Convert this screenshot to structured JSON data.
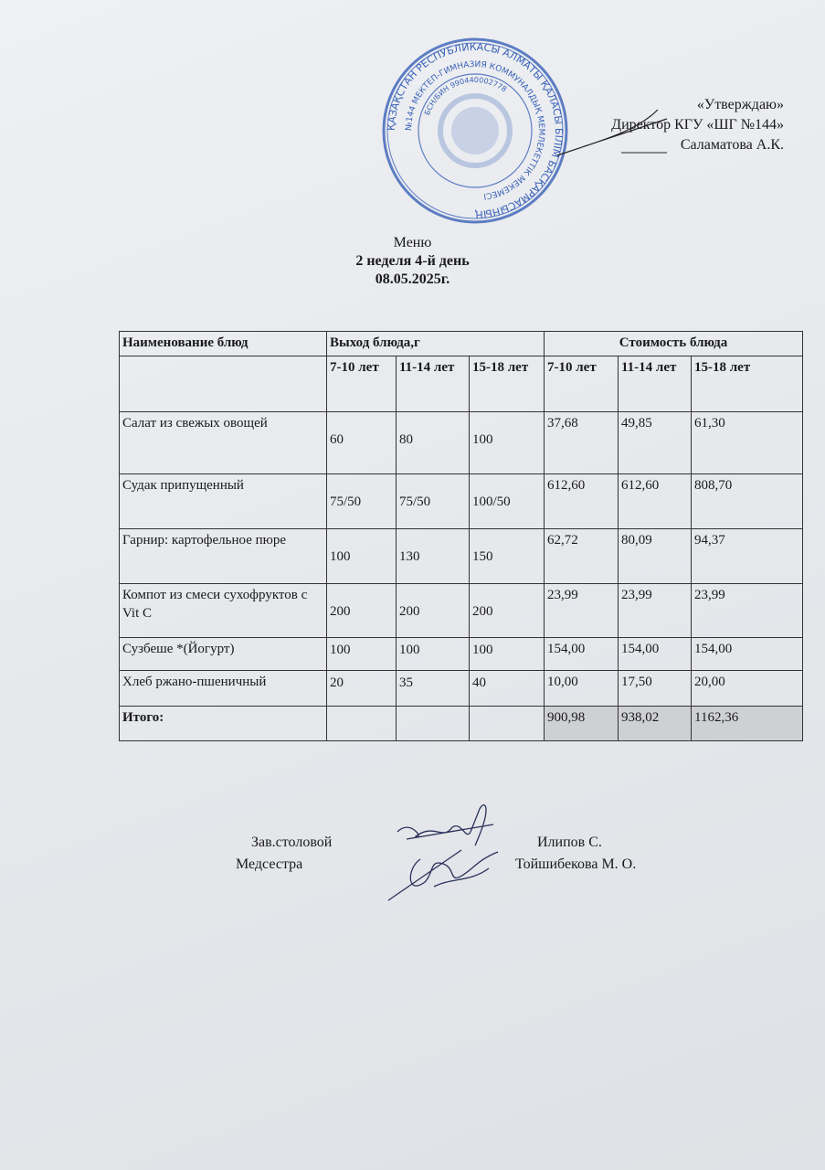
{
  "stamp": {
    "text_outer": "ҚАЗАҚСТАН РЕСПУБЛИКАСЫ АЛМАТЫ ҚАЛАСЫ БІЛІМ БАСҚАРМАСЫНЫҢ",
    "text_inner": "№144 МЕКТЕП-ГИМНАЗИЯ КОММУНАЛДЫҚ МЕМЛЕКЕТТІК МЕКЕМЕСІ",
    "bin": "БСН/БИН 990440002778",
    "color": "#3a62b8"
  },
  "approval": {
    "line1": "«Утверждаю»",
    "line2": "Директор КГУ «ШГ №144»",
    "line3": "Саламатова А.К."
  },
  "header": {
    "title": "Меню",
    "subtitle": "2 неделя 4-й день",
    "date": "08.05.2025г."
  },
  "table": {
    "col_name": "Наименование блюд",
    "col_yield": "Выход блюда,г",
    "col_cost": "Стоимость блюда",
    "age_groups": [
      "7-10 лет",
      "11-14 лет",
      "15-18 лет",
      "7-10 лет",
      "11-14 лет",
      "15-18 лет"
    ],
    "rows": [
      {
        "name": "Салат из свежых овощей",
        "yield": [
          "60",
          "80",
          "100"
        ],
        "cost": [
          "37,68",
          "49,85",
          "61,30"
        ]
      },
      {
        "name": "Судак припущенный",
        "yield": [
          "75/50",
          "75/50",
          "100/50"
        ],
        "cost": [
          "612,60",
          "612,60",
          "808,70"
        ]
      },
      {
        "name": "Гарнир:  картофельное пюре",
        "yield": [
          "100",
          "130",
          "150"
        ],
        "cost": [
          "62,72",
          "80,09",
          "94,37"
        ]
      },
      {
        "name": "Компот из смеси сухофруктов с Vit C",
        "yield": [
          "200",
          "200",
          "200"
        ],
        "cost": [
          "23,99",
          "23,99",
          "23,99"
        ]
      },
      {
        "name": "Сузбеше *(Йогурт)",
        "yield": [
          "100",
          "100",
          "100"
        ],
        "cost": [
          "154,00",
          "154,00",
          "154,00"
        ]
      },
      {
        "name": "Хлеб ржано-пшеничный",
        "yield": [
          "20",
          "35",
          "40"
        ],
        "cost": [
          "10,00",
          "17,50",
          "20,00"
        ]
      }
    ],
    "total": {
      "label": "Итого:",
      "cost": [
        "900,98",
        "938,02",
        "1162,36"
      ]
    }
  },
  "signatures": [
    {
      "role": "Зав.столовой",
      "name": "Илипов С."
    },
    {
      "role": "Медсестра",
      "name": "Тойшибекова М. О."
    }
  ]
}
